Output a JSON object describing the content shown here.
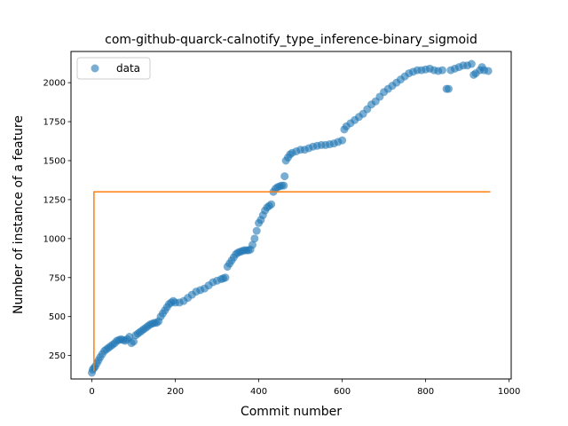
{
  "chart_data": {
    "type": "scatter",
    "title": "com-github-quarck-calnotify_type_inference-binary_sigmoid",
    "xlabel": "Commit number",
    "ylabel": "Number of instance of a feature",
    "xlim": [
      -50,
      1005
    ],
    "ylim": [
      100,
      2200
    ],
    "xticks": [
      0,
      200,
      400,
      600,
      800,
      1000
    ],
    "yticks": [
      250,
      500,
      750,
      1000,
      1250,
      1500,
      1750,
      2000
    ],
    "legend": {
      "position": "upper-left",
      "entries": [
        "data"
      ]
    },
    "colors": {
      "data": "#1f77b4",
      "fit": "#ff7f0e"
    },
    "series": [
      {
        "name": "data",
        "kind": "scatter",
        "points": [
          [
            0,
            140
          ],
          [
            2,
            160
          ],
          [
            5,
            170
          ],
          [
            8,
            180
          ],
          [
            12,
            200
          ],
          [
            16,
            220
          ],
          [
            20,
            240
          ],
          [
            25,
            260
          ],
          [
            30,
            280
          ],
          [
            35,
            290
          ],
          [
            40,
            300
          ],
          [
            45,
            310
          ],
          [
            50,
            320
          ],
          [
            55,
            330
          ],
          [
            60,
            345
          ],
          [
            65,
            350
          ],
          [
            70,
            355
          ],
          [
            75,
            350
          ],
          [
            80,
            345
          ],
          [
            85,
            355
          ],
          [
            90,
            370
          ],
          [
            95,
            330
          ],
          [
            100,
            340
          ],
          [
            105,
            380
          ],
          [
            110,
            390
          ],
          [
            115,
            400
          ],
          [
            120,
            410
          ],
          [
            125,
            420
          ],
          [
            130,
            430
          ],
          [
            135,
            440
          ],
          [
            140,
            450
          ],
          [
            145,
            455
          ],
          [
            150,
            460
          ],
          [
            155,
            460
          ],
          [
            160,
            470
          ],
          [
            165,
            500
          ],
          [
            170,
            520
          ],
          [
            175,
            540
          ],
          [
            180,
            560
          ],
          [
            185,
            580
          ],
          [
            190,
            590
          ],
          [
            195,
            600
          ],
          [
            200,
            590
          ],
          [
            210,
            590
          ],
          [
            220,
            600
          ],
          [
            230,
            620
          ],
          [
            240,
            640
          ],
          [
            250,
            660
          ],
          [
            260,
            670
          ],
          [
            270,
            680
          ],
          [
            280,
            700
          ],
          [
            290,
            720
          ],
          [
            300,
            730
          ],
          [
            310,
            740
          ],
          [
            315,
            745
          ],
          [
            320,
            750
          ],
          [
            325,
            820
          ],
          [
            330,
            840
          ],
          [
            335,
            860
          ],
          [
            340,
            880
          ],
          [
            345,
            900
          ],
          [
            350,
            910
          ],
          [
            355,
            915
          ],
          [
            360,
            920
          ],
          [
            365,
            925
          ],
          [
            370,
            925
          ],
          [
            375,
            925
          ],
          [
            380,
            930
          ],
          [
            385,
            960
          ],
          [
            390,
            1000
          ],
          [
            395,
            1050
          ],
          [
            400,
            1100
          ],
          [
            405,
            1120
          ],
          [
            410,
            1150
          ],
          [
            415,
            1180
          ],
          [
            420,
            1200
          ],
          [
            425,
            1210
          ],
          [
            430,
            1220
          ],
          [
            435,
            1300
          ],
          [
            440,
            1320
          ],
          [
            445,
            1330
          ],
          [
            450,
            1335
          ],
          [
            455,
            1340
          ],
          [
            460,
            1340
          ],
          [
            462,
            1400
          ],
          [
            465,
            1500
          ],
          [
            470,
            1520
          ],
          [
            475,
            1540
          ],
          [
            480,
            1550
          ],
          [
            490,
            1560
          ],
          [
            500,
            1570
          ],
          [
            510,
            1570
          ],
          [
            520,
            1580
          ],
          [
            530,
            1590
          ],
          [
            540,
            1595
          ],
          [
            550,
            1600
          ],
          [
            560,
            1600
          ],
          [
            570,
            1605
          ],
          [
            580,
            1610
          ],
          [
            590,
            1620
          ],
          [
            600,
            1630
          ],
          [
            605,
            1700
          ],
          [
            610,
            1720
          ],
          [
            620,
            1740
          ],
          [
            630,
            1760
          ],
          [
            640,
            1780
          ],
          [
            650,
            1800
          ],
          [
            660,
            1830
          ],
          [
            670,
            1860
          ],
          [
            680,
            1880
          ],
          [
            690,
            1910
          ],
          [
            700,
            1940
          ],
          [
            710,
            1960
          ],
          [
            720,
            1980
          ],
          [
            730,
            2000
          ],
          [
            740,
            2020
          ],
          [
            750,
            2040
          ],
          [
            760,
            2060
          ],
          [
            770,
            2070
          ],
          [
            780,
            2080
          ],
          [
            790,
            2080
          ],
          [
            800,
            2085
          ],
          [
            810,
            2090
          ],
          [
            820,
            2080
          ],
          [
            830,
            2075
          ],
          [
            840,
            2080
          ],
          [
            850,
            1960
          ],
          [
            855,
            1960
          ],
          [
            860,
            2080
          ],
          [
            870,
            2090
          ],
          [
            880,
            2100
          ],
          [
            890,
            2110
          ],
          [
            900,
            2110
          ],
          [
            910,
            2120
          ],
          [
            915,
            2050
          ],
          [
            920,
            2060
          ],
          [
            930,
            2080
          ],
          [
            935,
            2100
          ],
          [
            940,
            2080
          ],
          [
            950,
            2075
          ]
        ]
      },
      {
        "name": "",
        "kind": "line",
        "points": [
          [
            5,
            150
          ],
          [
            5,
            1300
          ],
          [
            955,
            1300
          ]
        ]
      }
    ]
  }
}
